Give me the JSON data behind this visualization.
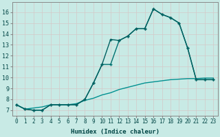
{
  "bg_color": "#c8eae5",
  "grid_color": "#b0d8d2",
  "line_color_dark": "#006060",
  "line_color_mid": "#007070",
  "line_color_light": "#009090",
  "xlabel": "Humidex (Indice chaleur)",
  "yticks": [
    7,
    8,
    9,
    10,
    11,
    12,
    13,
    14,
    15,
    16
  ],
  "xlim": [
    -0.5,
    23.5
  ],
  "ylim": [
    6.5,
    16.9
  ],
  "series_max_x": [
    0,
    1,
    2,
    3,
    4,
    5,
    6,
    7,
    8,
    9,
    10,
    11,
    12,
    13,
    14,
    15,
    16,
    17,
    18,
    19,
    20,
    21,
    22,
    23
  ],
  "series_max_y": [
    7.5,
    7.1,
    7.0,
    7.0,
    7.5,
    7.5,
    7.5,
    7.5,
    8.0,
    9.5,
    11.2,
    13.5,
    13.4,
    13.8,
    14.5,
    14.5,
    16.3,
    15.8,
    15.5,
    15.0,
    12.7,
    9.8,
    9.8,
    9.8
  ],
  "series_min_x": [
    0,
    1,
    2,
    3,
    4,
    5,
    6,
    7,
    8,
    9,
    10,
    11,
    12,
    13,
    14,
    15,
    16,
    17,
    18,
    19,
    20,
    21,
    22,
    23
  ],
  "series_min_y": [
    7.5,
    7.1,
    7.0,
    7.0,
    7.5,
    7.5,
    7.5,
    7.5,
    8.0,
    9.5,
    11.2,
    11.2,
    13.4,
    13.8,
    14.5,
    14.5,
    16.3,
    15.8,
    15.5,
    15.0,
    12.7,
    9.8,
    9.8,
    9.8
  ],
  "series_avg_x": [
    0,
    1,
    2,
    3,
    4,
    5,
    6,
    7,
    8,
    9,
    10,
    11,
    12,
    13,
    14,
    15,
    16,
    17,
    18,
    19,
    20,
    21,
    22,
    23
  ],
  "series_avg_y": [
    7.5,
    7.1,
    7.2,
    7.3,
    7.5,
    7.5,
    7.5,
    7.6,
    7.9,
    8.1,
    8.4,
    8.6,
    8.9,
    9.1,
    9.3,
    9.5,
    9.6,
    9.7,
    9.8,
    9.85,
    9.9,
    9.9,
    9.95,
    9.95
  ],
  "fontsize_tick": 5.5,
  "fontsize_label": 6.5
}
